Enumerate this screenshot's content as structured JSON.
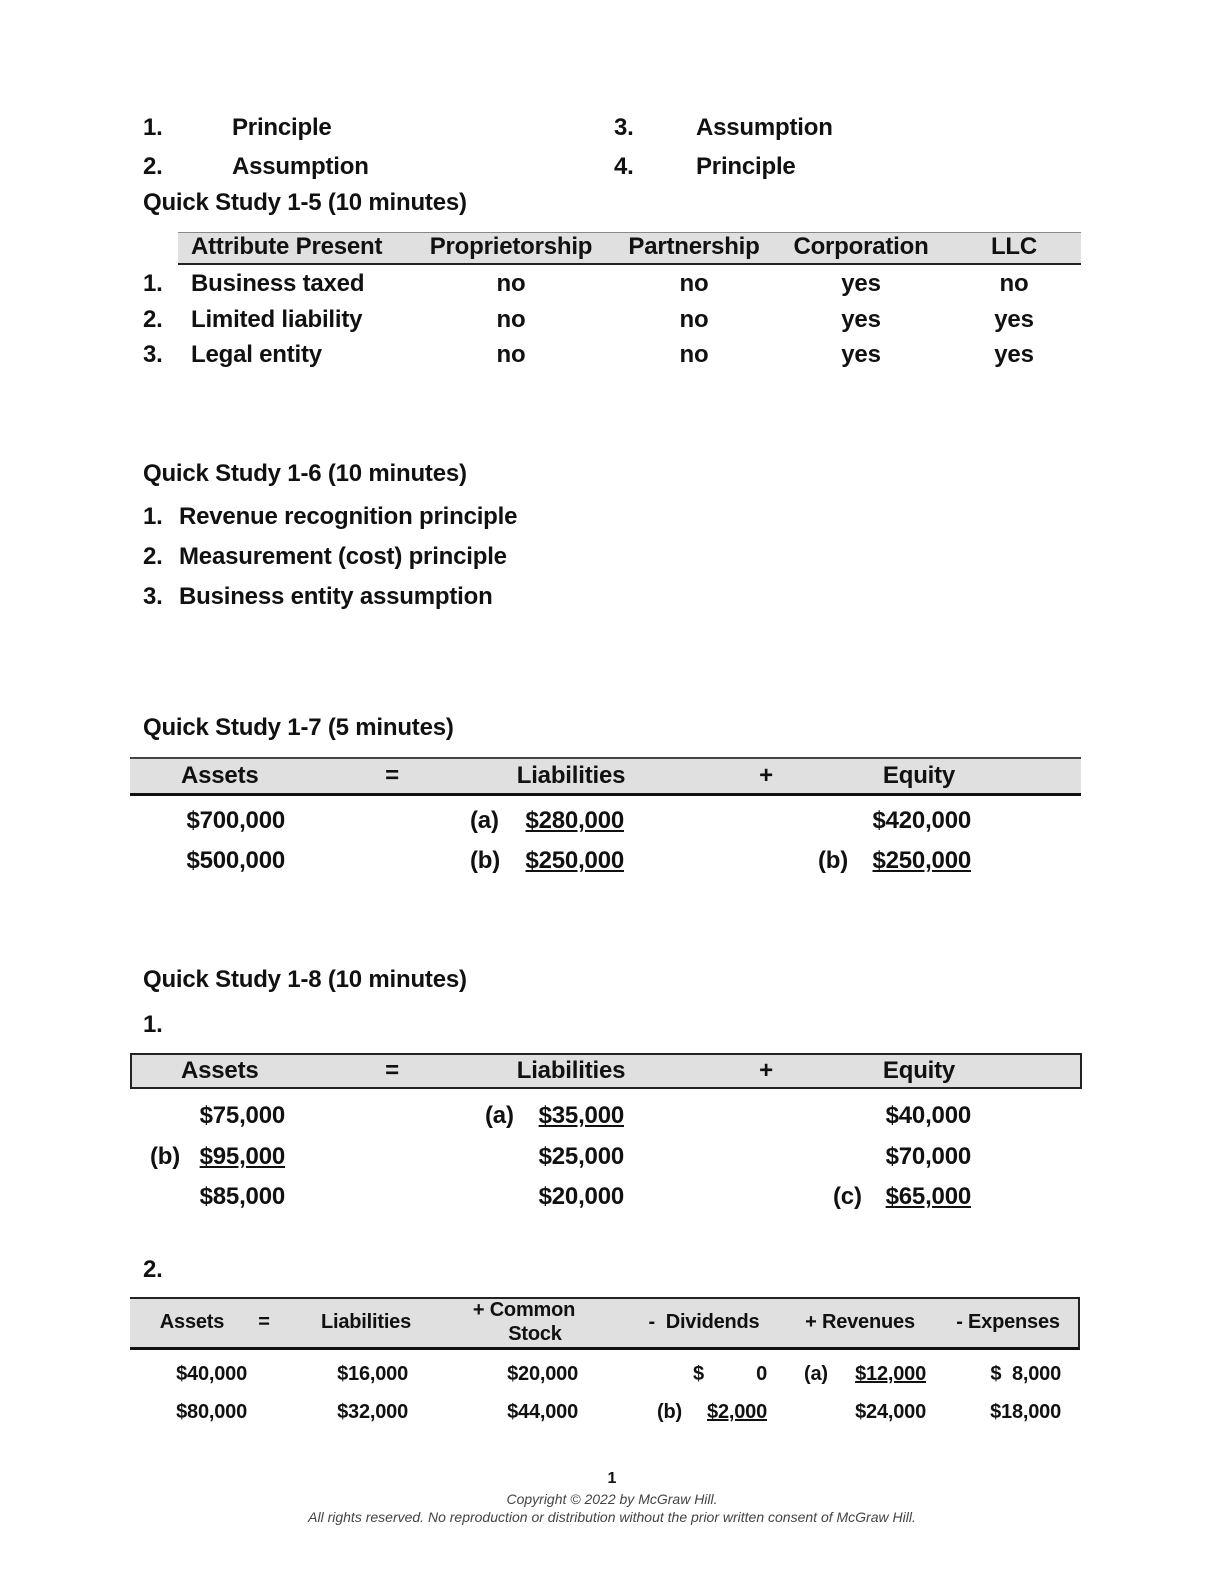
{
  "intro": {
    "items": [
      {
        "num": "1.",
        "label": "Principle"
      },
      {
        "num": "2.",
        "label": "Assumption"
      },
      {
        "num": "3.",
        "label": "Assumption"
      },
      {
        "num": "4.",
        "label": "Principle"
      }
    ]
  },
  "qs5": {
    "title": "Quick Study 1-5 (10 minutes)",
    "headers": [
      "Attribute Present",
      "Proprietorship",
      "Partnership",
      "Corporation",
      "LLC"
    ],
    "rows": [
      {
        "num": "1.",
        "attr": "Business taxed",
        "cells": [
          "no",
          "no",
          "yes",
          "no"
        ]
      },
      {
        "num": "2.",
        "attr": "Limited liability",
        "cells": [
          "no",
          "no",
          "yes",
          "yes"
        ]
      },
      {
        "num": "3.",
        "attr": "Legal entity",
        "cells": [
          "no",
          "no",
          "yes",
          "yes"
        ]
      }
    ]
  },
  "qs6": {
    "title": "Quick Study 1-6 (10 minutes)",
    "items": [
      {
        "num": "1.",
        "text": "Revenue recognition principle"
      },
      {
        "num": "2.",
        "text": "Measurement (cost) principle"
      },
      {
        "num": "3.",
        "text": "Business entity assumption"
      }
    ]
  },
  "qs7": {
    "title": "Quick Study 1-7 (5 minutes)",
    "headers": {
      "assets": "Assets",
      "eq": "=",
      "liabilities": "Liabilities",
      "plus": "+",
      "equity": "Equity"
    },
    "rows": [
      {
        "assets": "$700,000",
        "liab_tag": "(a)",
        "liabilities": "$280,000",
        "equity": "$420,000"
      },
      {
        "assets": "$500,000",
        "liab_tag": "(b)",
        "liabilities": "$250,000",
        "equity_tag": "(b)",
        "equity": "$250,000"
      }
    ]
  },
  "qs8": {
    "title": "Quick Study 1-8 (10 minutes)",
    "part1": "1.",
    "headers": {
      "assets": "Assets",
      "eq": "=",
      "liabilities": "Liabilities",
      "plus": "+",
      "equity": "Equity"
    },
    "rows": [
      {
        "assets": "$75,000",
        "liab_tag": "(a)",
        "liabilities": "$35,000",
        "equity": "$40,000"
      },
      {
        "assets_tag": "(b)",
        "assets": "$95,000",
        "liabilities": "$25,000",
        "equity": "$70,000"
      },
      {
        "assets": "$85,000",
        "liabilities": "$20,000",
        "equity_tag": "(c)",
        "equity": "$65,000"
      }
    ],
    "part2": "2.",
    "headers2": {
      "assets": "Assets",
      "eq": "=",
      "liabilities": "Liabilities",
      "common1": "+ Common",
      "common2": "Stock",
      "dividends": "-  Dividends",
      "revenues": "+ Revenues",
      "expenses": "- Expenses"
    },
    "rows2": [
      {
        "assets": "$40,000",
        "liabilities": "$16,000",
        "common": "$20,000",
        "div_sign": "$",
        "dividends": "0",
        "rev_tag": "(a)",
        "revenues": "$12,000",
        "expenses": "$  8,000"
      },
      {
        "assets": "$80,000",
        "liabilities": "$32,000",
        "common": "$44,000",
        "div_tag": "(b)",
        "dividends": "$2,000",
        "revenues": "$24,000",
        "expenses": "$18,000"
      }
    ]
  },
  "footer": {
    "page": "1",
    "copyright": "Copyright © 2022 by McGraw Hill.",
    "rights": "All rights reserved. No reproduction or distribution without the prior written consent of McGraw Hill."
  }
}
